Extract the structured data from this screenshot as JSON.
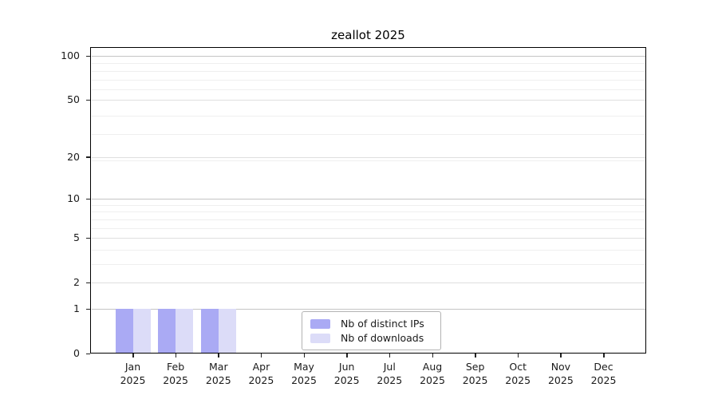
{
  "chart_data": {
    "type": "bar",
    "title": "zeallot 2025",
    "x": {
      "months": [
        "Jan",
        "Feb",
        "Mar",
        "Apr",
        "May",
        "Jun",
        "Jul",
        "Aug",
        "Sep",
        "Oct",
        "Nov",
        "Dec"
      ],
      "year_line": "2025"
    },
    "series": [
      {
        "name": "Nb of distinct IPs",
        "color": "#aaaaf4",
        "values": [
          1,
          1,
          1,
          0,
          0,
          0,
          0,
          0,
          0,
          0,
          0,
          0
        ]
      },
      {
        "name": "Nb of downloads",
        "color": "#dcdcf8",
        "values": [
          1,
          1,
          1,
          0,
          0,
          0,
          0,
          0,
          0,
          0,
          0,
          0
        ]
      }
    ],
    "y_axis": {
      "scale": "log10(value+1)",
      "tick_values": [
        0,
        1,
        2,
        5,
        10,
        20,
        50,
        100
      ],
      "range": [
        0,
        115
      ]
    },
    "grid": {
      "horizontal": true,
      "strong_values": [
        1,
        10,
        100
      ],
      "medium_values": [
        2,
        5,
        20,
        50
      ],
      "minor_values": [
        3,
        4,
        6,
        7,
        8,
        9,
        19,
        29,
        39,
        59,
        69,
        79,
        89
      ]
    },
    "legend": {
      "position": "lower-center-inside"
    }
  },
  "colors": {
    "frame": "#000000",
    "text": "#1a1a1a",
    "grid_strong": "#c4c4c4",
    "grid_medium": "#dfdfdf",
    "grid_minor": "#efefef",
    "legend_border": "#b3b3b3"
  }
}
